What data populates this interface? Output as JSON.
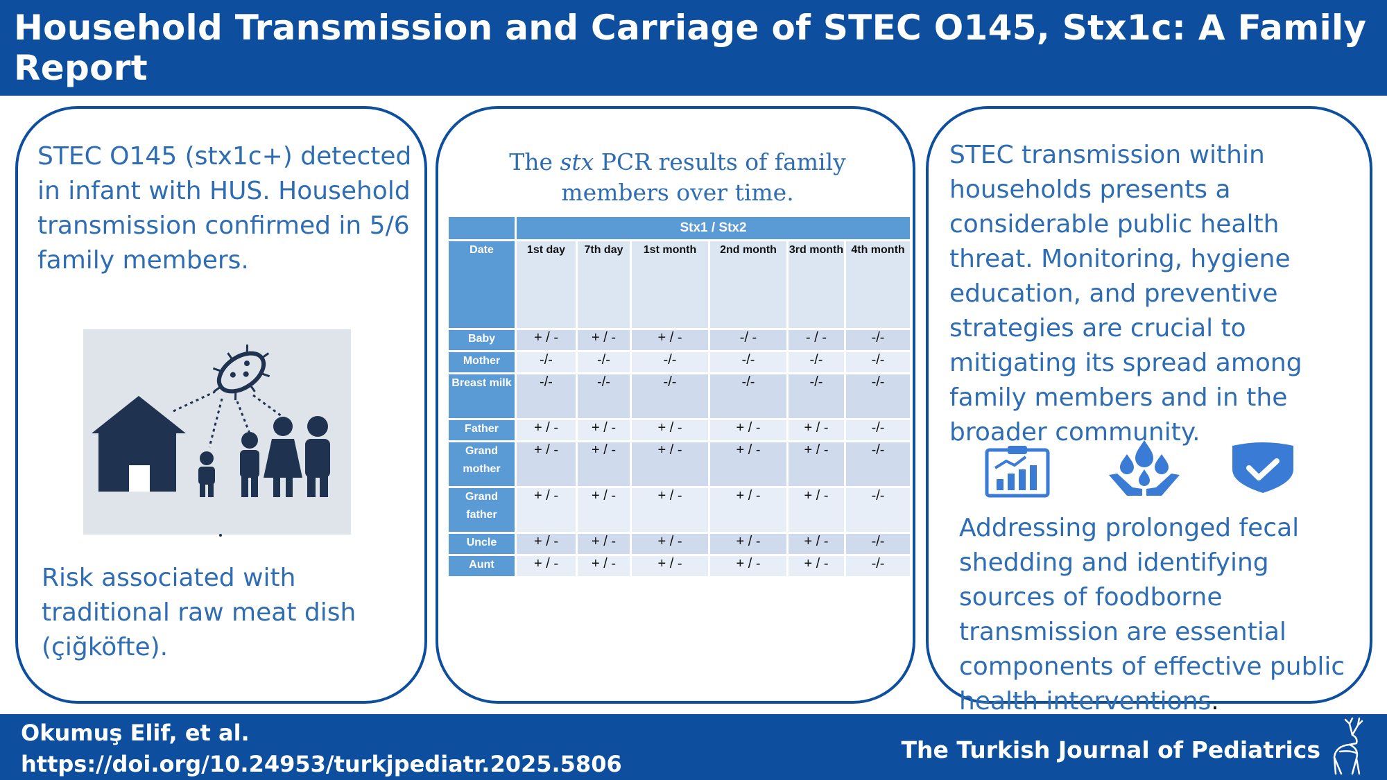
{
  "header": {
    "title": "Household Transmission and Carriage of STEC O145, Stx1c: A Family Report"
  },
  "left_panel": {
    "top_text": "STEC O145 (stx1c+) detected in infant with HUS. Household transmission confirmed in 5/6 family members.",
    "bottom_text": "Risk associated with traditional raw meat dish (çiğköfte).",
    "illustration": "house-bacteria-family-illustration"
  },
  "middle_panel": {
    "title_pre": "The ",
    "title_italic": "stx",
    "title_post": " PCR results of family members over time.",
    "table": {
      "span_header": "Stx1 / Stx2",
      "date_header": "Date",
      "columns": [
        "1st day",
        "7th day",
        "1st month",
        "2nd month",
        "3rd month",
        "4th month"
      ],
      "rows": [
        {
          "label": "Baby",
          "values": [
            "+ / -",
            "+ / -",
            "+ / -",
            "-/ -",
            "- / -",
            "-/-"
          ]
        },
        {
          "label": "Mother",
          "values": [
            "-/-",
            "-/-",
            "-/-",
            "-/-",
            "-/-",
            "-/-"
          ]
        },
        {
          "label": "Breast milk",
          "values": [
            "-/-",
            "-/-",
            "-/-",
            "-/-",
            "-/-",
            "-/-"
          ]
        },
        {
          "label": "Father",
          "values": [
            "+ / -",
            "+ / -",
            "+ / -",
            "+ / -",
            "+ / -",
            "-/-"
          ]
        },
        {
          "label": "Grand mother",
          "values": [
            "+ / -",
            "+ / -",
            "+ / -",
            "+ / -",
            "+ / -",
            "-/-"
          ]
        },
        {
          "label": "Grand father",
          "values": [
            "+ / -",
            "+ / -",
            "+ / -",
            "+ / -",
            "+ / -",
            "-/-"
          ]
        },
        {
          "label": "Uncle",
          "values": [
            "+ / -",
            "+ / -",
            "+ / -",
            "+ / -",
            "+ / -",
            "-/-"
          ]
        },
        {
          "label": "Aunt",
          "values": [
            "+ / -",
            "+ / -",
            "+ / -",
            "+ / -",
            "+ / -",
            "-/-"
          ]
        }
      ]
    }
  },
  "right_panel": {
    "top_text": "STEC transmission within households presents a considerable public health threat. Monitoring, hygiene education, and preventive strategies are crucial to mitigating its spread among family members and in the broader community.",
    "bottom_text": "Addressing prolonged fecal shedding and identifying sources of foodborne transmission are essential components of effective public health interventions",
    "bottom_end": ".",
    "icons": [
      "clipboard-chart-icon",
      "hands-water-drops-icon",
      "shield-check-icon"
    ]
  },
  "footer": {
    "author": "Okumuş Elif, et al.",
    "doi": "https://doi.org/10.24953/turkjpediatr.2025.5806",
    "journal": "The Turkish Journal of Pediatrics",
    "logo": "deer-logo"
  },
  "colors": {
    "brand_blue": "#0d4f9e",
    "text_blue": "#2e6db4",
    "table_header_blue": "#5b9bd5",
    "table_row_light": "#e8eef7",
    "table_row_dark": "#cfdbec"
  }
}
